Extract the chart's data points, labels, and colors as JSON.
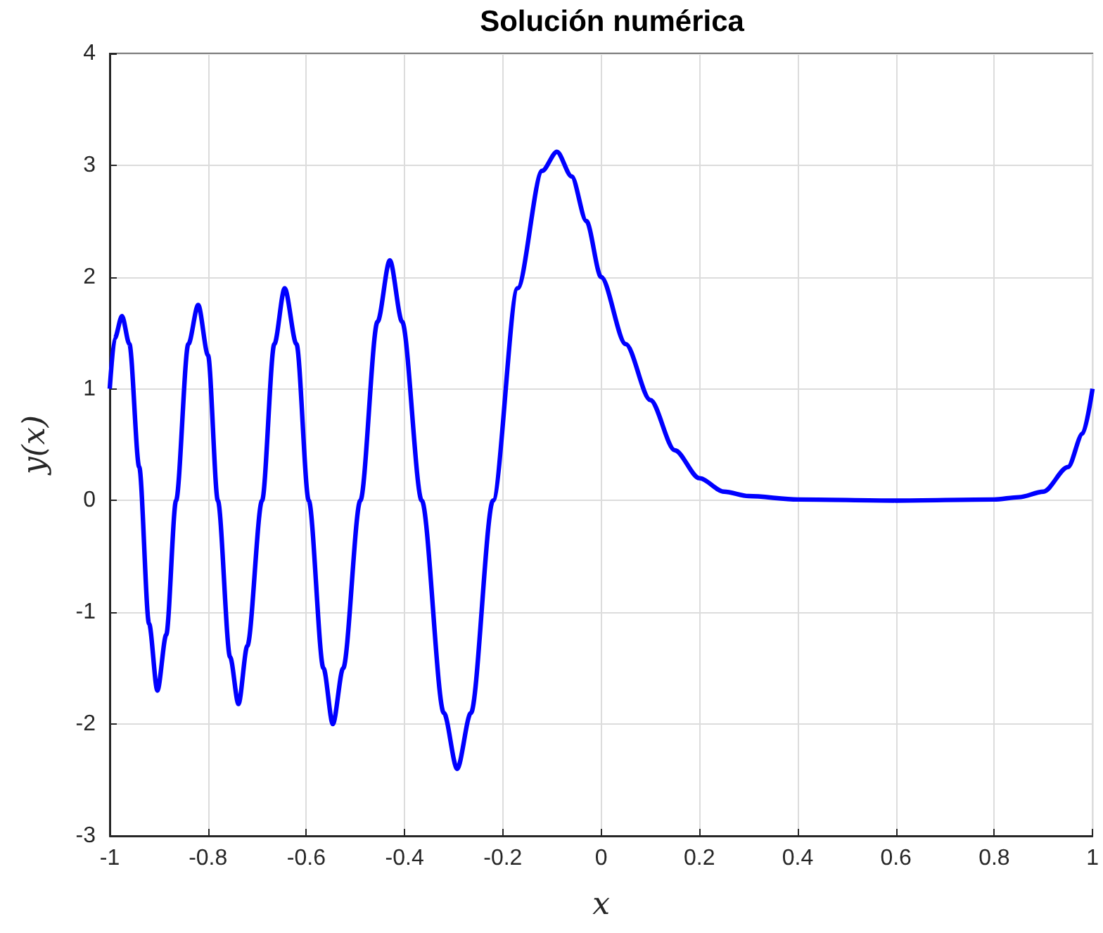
{
  "chart_data": {
    "type": "line",
    "title": "Solución numérica",
    "xlabel": "x",
    "ylabel": "y(x)",
    "xlim": [
      -1,
      1
    ],
    "xticks": [
      -1,
      -0.8,
      -0.6,
      -0.4,
      -0.2,
      0,
      0.2,
      0.4,
      0.6,
      0.8,
      1
    ],
    "ylim": [
      -3,
      4
    ],
    "yticks": [
      -3,
      -2,
      -1,
      0,
      1,
      2,
      3,
      4
    ],
    "grid": true,
    "marker": "none",
    "line_style": "solid",
    "series": [
      {
        "color": "#0000ff",
        "x": [
          -1,
          -0.99,
          -0.975,
          -0.96,
          -0.94,
          -0.92,
          -0.903,
          -0.885,
          -0.865,
          -0.84,
          -0.82,
          -0.8,
          -0.78,
          -0.755,
          -0.738,
          -0.72,
          -0.69,
          -0.665,
          -0.644,
          -0.62,
          -0.595,
          -0.565,
          -0.546,
          -0.525,
          -0.49,
          -0.455,
          -0.43,
          -0.405,
          -0.365,
          -0.32,
          -0.293,
          -0.265,
          -0.22,
          -0.17,
          -0.12,
          -0.09,
          -0.06,
          -0.03,
          0,
          0.05,
          0.1,
          0.15,
          0.2,
          0.25,
          0.3,
          0.4,
          0.6,
          0.8,
          0.85,
          0.9,
          0.95,
          0.98,
          1
        ],
        "values": [
          1,
          1.45,
          1.65,
          1.4,
          0.3,
          -1.1,
          -1.7,
          -1.2,
          0,
          1.4,
          1.75,
          1.3,
          0,
          -1.4,
          -1.82,
          -1.3,
          0,
          1.4,
          1.9,
          1.4,
          0,
          -1.5,
          -2.0,
          -1.5,
          0,
          1.6,
          2.15,
          1.6,
          0,
          -1.9,
          -2.4,
          -1.9,
          0,
          1.9,
          2.95,
          3.12,
          2.9,
          2.5,
          2.0,
          1.4,
          0.9,
          0.45,
          0.2,
          0.08,
          0.04,
          0.01,
          0,
          0.01,
          0.03,
          0.08,
          0.3,
          0.6,
          1
        ]
      }
    ]
  }
}
